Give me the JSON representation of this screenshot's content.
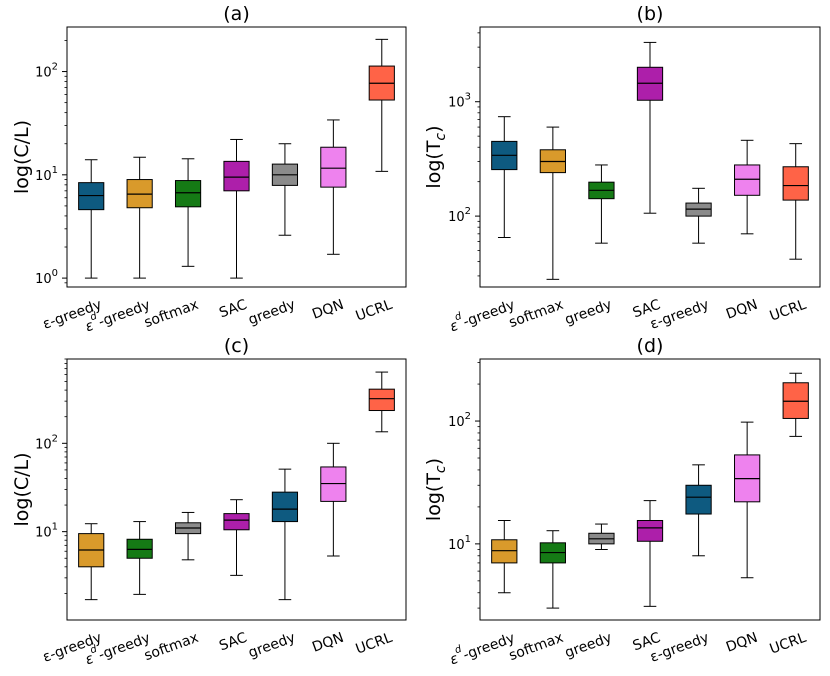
{
  "chart_data": [
    {
      "id": "a",
      "type": "box",
      "title": "(a)",
      "ylabel": "log(C/L)",
      "yscale": "log",
      "ylim": [
        0.82,
        270
      ],
      "yticks": [
        {
          "value": 1,
          "base": "10",
          "exp": "0"
        },
        {
          "value": 10,
          "base": "10",
          "exp": "1"
        },
        {
          "value": 100,
          "base": "10",
          "exp": "2"
        }
      ],
      "categories": [
        {
          "label": "ε-greedy",
          "pre": "",
          "sup": "",
          "main": "ε-greedy",
          "color": "#0e5a80",
          "min": 1.0,
          "q1": 4.6,
          "median": 6.3,
          "q3": 8.4,
          "max": 14.0
        },
        {
          "label": "εd-greedy",
          "pre": "ε",
          "sup": "d",
          "main": "-greedy",
          "color": "#d99a2b",
          "min": 1.0,
          "q1": 4.8,
          "median": 6.5,
          "q3": 9.0,
          "max": 14.8
        },
        {
          "label": "softmax",
          "pre": "",
          "sup": "",
          "main": "softmax",
          "color": "#157a15",
          "min": 1.3,
          "q1": 4.9,
          "median": 6.7,
          "q3": 8.8,
          "max": 14.3
        },
        {
          "label": "SAC",
          "pre": "",
          "sup": "",
          "main": "SAC",
          "color": "#ad1faa",
          "min": 1.0,
          "q1": 7.0,
          "median": 9.5,
          "q3": 13.5,
          "max": 22.0
        },
        {
          "label": "greedy",
          "pre": "",
          "sup": "",
          "main": "greedy",
          "color": "#8b8b8b",
          "min": 2.6,
          "q1": 7.9,
          "median": 10.0,
          "q3": 12.7,
          "max": 20.0
        },
        {
          "label": "DQN",
          "pre": "",
          "sup": "",
          "main": "DQN",
          "color": "#ee82ee",
          "min": 1.7,
          "q1": 7.6,
          "median": 11.6,
          "q3": 18.5,
          "max": 34.0
        },
        {
          "label": "UCRL",
          "pre": "",
          "sup": "",
          "main": "UCRL",
          "color": "#ff6347",
          "min": 10.8,
          "q1": 53.0,
          "median": 77.0,
          "q3": 113.0,
          "max": 205.0
        }
      ]
    },
    {
      "id": "b",
      "type": "box",
      "title": "(b)",
      "ylabel": "log(T",
      "ylabel_sub": "c",
      "ylabel_close": ")",
      "yscale": "log",
      "ylim": [
        24,
        4500
      ],
      "yticks": [
        {
          "value": 100,
          "base": "10",
          "exp": "2"
        },
        {
          "value": 1000,
          "base": "10",
          "exp": "3"
        }
      ],
      "categories": [
        {
          "label": "εd-greedy",
          "pre": "ε",
          "sup": "d",
          "main": "-greedy",
          "color": "#0e5a80",
          "min": 65,
          "q1": 255,
          "median": 340,
          "q3": 450,
          "max": 740
        },
        {
          "label": "softmax",
          "pre": "",
          "sup": "",
          "main": "softmax",
          "color": "#d99a2b",
          "min": 28,
          "q1": 240,
          "median": 300,
          "q3": 380,
          "max": 600
        },
        {
          "label": "greedy",
          "pre": "",
          "sup": "",
          "main": "greedy",
          "color": "#157a15",
          "min": 58,
          "q1": 142,
          "median": 168,
          "q3": 198,
          "max": 280
        },
        {
          "label": "SAC",
          "pre": "",
          "sup": "",
          "main": "SAC",
          "color": "#ad1faa",
          "min": 106,
          "q1": 1030,
          "median": 1450,
          "q3": 2000,
          "max": 3300
        },
        {
          "label": "ε-greedy",
          "pre": "",
          "sup": "",
          "main": "ε-greedy",
          "color": "#8b8b8b",
          "min": 58,
          "q1": 100,
          "median": 115,
          "q3": 130,
          "max": 175
        },
        {
          "label": "DQN",
          "pre": "",
          "sup": "",
          "main": "DQN",
          "color": "#ee82ee",
          "min": 70,
          "q1": 152,
          "median": 210,
          "q3": 280,
          "max": 460
        },
        {
          "label": "UCRL",
          "pre": "",
          "sup": "",
          "main": "UCRL",
          "color": "#ff6347",
          "min": 42,
          "q1": 138,
          "median": 185,
          "q3": 270,
          "max": 430
        }
      ]
    },
    {
      "id": "c",
      "type": "box",
      "title": "(c)",
      "ylabel": "log(C/L)",
      "yscale": "log",
      "ylim": [
        1.0,
        900
      ],
      "yticks": [
        {
          "value": 10,
          "base": "10",
          "exp": "1"
        },
        {
          "value": 100,
          "base": "10",
          "exp": "2"
        }
      ],
      "categories": [
        {
          "label": "ε-greedy",
          "pre": "",
          "sup": "",
          "main": "ε-greedy",
          "color": "#d99a2b",
          "min": 1.7,
          "q1": 4.0,
          "median": 6.2,
          "q3": 9.5,
          "max": 12.3
        },
        {
          "label": "εd-greedy",
          "pre": "ε",
          "sup": "d",
          "main": "-greedy",
          "color": "#157a15",
          "min": 1.95,
          "q1": 5.0,
          "median": 6.3,
          "q3": 8.2,
          "max": 13.0
        },
        {
          "label": "softmax",
          "pre": "",
          "sup": "",
          "main": "softmax",
          "color": "#8b8b8b",
          "min": 4.8,
          "q1": 9.5,
          "median": 11.0,
          "q3": 12.6,
          "max": 16.5
        },
        {
          "label": "SAC",
          "pre": "",
          "sup": "",
          "main": "SAC",
          "color": "#ad1faa",
          "min": 3.2,
          "q1": 10.5,
          "median": 13.5,
          "q3": 16.0,
          "max": 23.0
        },
        {
          "label": "greedy",
          "pre": "",
          "sup": "",
          "main": "greedy",
          "color": "#0e5a80",
          "min": 1.7,
          "q1": 13.0,
          "median": 18.0,
          "q3": 28.0,
          "max": 51.0
        },
        {
          "label": "DQN",
          "pre": "",
          "sup": "",
          "main": "DQN",
          "color": "#ee82ee",
          "min": 5.3,
          "q1": 22.0,
          "median": 35.0,
          "q3": 54.0,
          "max": 100.0
        },
        {
          "label": "UCRL",
          "pre": "",
          "sup": "",
          "main": "UCRL",
          "color": "#ff6347",
          "min": 135.0,
          "q1": 235.0,
          "median": 320.0,
          "q3": 410.0,
          "max": 640.0
        }
      ]
    },
    {
      "id": "d",
      "type": "box",
      "title": "(d)",
      "ylabel": "log(T",
      "ylabel_sub": "c",
      "ylabel_close": ")",
      "yscale": "log",
      "ylim": [
        2.4,
        320
      ],
      "yticks": [
        {
          "value": 10,
          "base": "10",
          "exp": "1"
        },
        {
          "value": 100,
          "base": "10",
          "exp": "2"
        }
      ],
      "categories": [
        {
          "label": "εd-greedy",
          "pre": "ε",
          "sup": "d",
          "main": "-greedy",
          "color": "#d99a2b",
          "min": 4.0,
          "q1": 7.0,
          "median": 8.8,
          "q3": 10.8,
          "max": 15.5
        },
        {
          "label": "softmax",
          "pre": "",
          "sup": "",
          "main": "softmax",
          "color": "#157a15",
          "min": 3.0,
          "q1": 7.0,
          "median": 8.5,
          "q3": 10.2,
          "max": 12.8
        },
        {
          "label": "greedy",
          "pre": "",
          "sup": "",
          "main": "greedy",
          "color": "#8b8b8b",
          "min": 9.0,
          "q1": 10.0,
          "median": 11.0,
          "q3": 12.2,
          "max": 14.5
        },
        {
          "label": "SAC",
          "pre": "",
          "sup": "",
          "main": "SAC",
          "color": "#ad1faa",
          "min": 3.1,
          "q1": 10.5,
          "median": 13.5,
          "q3": 15.5,
          "max": 22.5
        },
        {
          "label": "ε-greedy",
          "pre": "",
          "sup": "",
          "main": "ε-greedy",
          "color": "#0e5a80",
          "min": 8.0,
          "q1": 17.5,
          "median": 24.0,
          "q3": 30.0,
          "max": 44.0
        },
        {
          "label": "DQN",
          "pre": "",
          "sup": "",
          "main": "DQN",
          "color": "#ee82ee",
          "min": 5.3,
          "q1": 22.0,
          "median": 34.0,
          "q3": 53.0,
          "max": 98.0
        },
        {
          "label": "UCRL",
          "pre": "",
          "sup": "",
          "main": "UCRL",
          "color": "#ff6347",
          "min": 75.0,
          "q1": 105.0,
          "median": 145.0,
          "q3": 205.0,
          "max": 245.0
        }
      ]
    }
  ]
}
